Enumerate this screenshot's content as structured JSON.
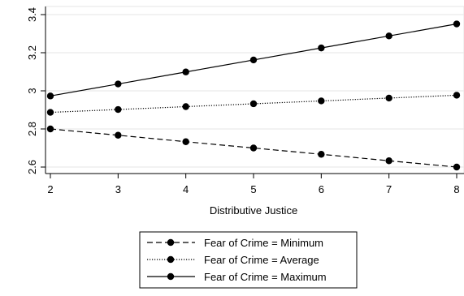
{
  "chart_data": {
    "type": "line",
    "title": "",
    "xlabel": "Distributive Justice",
    "ylabel": "",
    "x": [
      2,
      3,
      4,
      5,
      6,
      7,
      8
    ],
    "xlim": [
      2,
      8
    ],
    "ylim": [
      2.6,
      3.4
    ],
    "xticks": [
      "2",
      "3",
      "4",
      "5",
      "6",
      "7",
      "8"
    ],
    "yticks": [
      "2.6",
      "2.8",
      "3",
      "3.2",
      "3.4"
    ],
    "grid": "horizontal",
    "legend_position": "bottom",
    "series": [
      {
        "name": "Fear of Crime = Minimum",
        "line_style": "dashed",
        "color": "#000000",
        "values": [
          2.8,
          2.767,
          2.733,
          2.7,
          2.667,
          2.633,
          2.6
        ]
      },
      {
        "name": "Fear of Crime = Average",
        "line_style": "dotted",
        "color": "#000000",
        "values": [
          2.887,
          2.902,
          2.917,
          2.932,
          2.947,
          2.962,
          2.977
        ]
      },
      {
        "name": "Fear of Crime = Maximum",
        "line_style": "solid",
        "color": "#000000",
        "values": [
          2.973,
          3.036,
          3.099,
          3.162,
          3.225,
          3.288,
          3.351
        ]
      }
    ]
  }
}
